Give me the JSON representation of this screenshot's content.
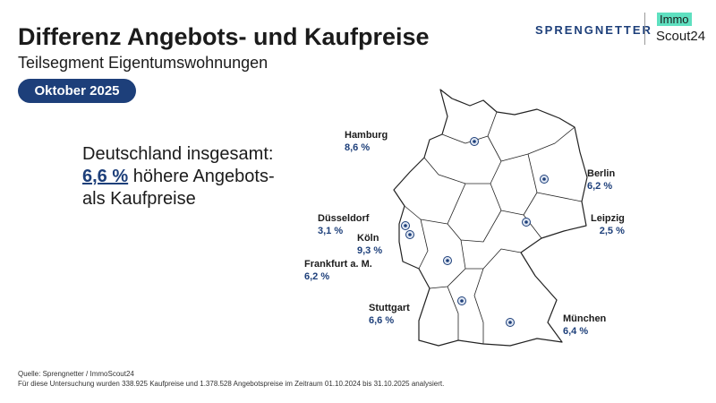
{
  "header": {
    "title": "Differenz Angebots- und Kaufpreise",
    "subtitle": "Teilsegment Eigentumswohnungen",
    "period": "Oktober 2025"
  },
  "logos": {
    "sprengnetter": "SPRENGNETTER",
    "immo": "Immo",
    "scout": "Scout24"
  },
  "summary": {
    "line1": "Deutschland insgesamt:",
    "highlight": "6,6 %",
    "line2": "höhere Angebots-",
    "line3": "als Kaufpreise"
  },
  "cities": [
    {
      "name": "Hamburg",
      "value": "8,6 %"
    },
    {
      "name": "Berlin",
      "value": "6,2 %"
    },
    {
      "name": "Düsseldorf",
      "value": "3,1 %"
    },
    {
      "name": "Köln",
      "value": "9,3 %"
    },
    {
      "name": "Leipzig",
      "value": "2,5 %"
    },
    {
      "name": "Frankfurt a. M.",
      "value": "6,2 %"
    },
    {
      "name": "Stuttgart",
      "value": "6,6 %"
    },
    {
      "name": "München",
      "value": "6,4 %"
    }
  ],
  "footer": {
    "source": "Quelle: Sprengnetter / ImmoScout24",
    "note": "Für diese Untersuchung wurden 338.925 Kaufpreise und 1.378.528 Angebotspreise im Zeitraum 01.10.2024 bis 31.10.2025 analysiert."
  }
}
